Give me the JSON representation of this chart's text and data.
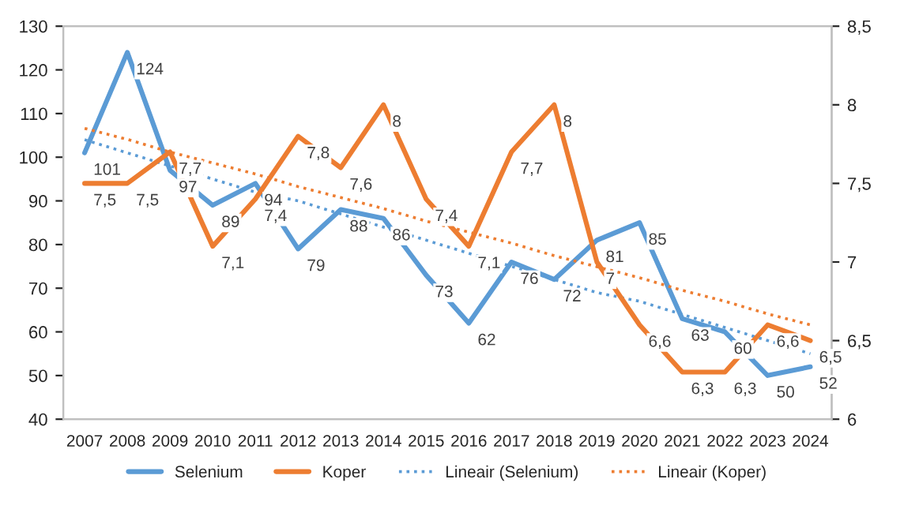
{
  "chart_data": {
    "type": "line",
    "categories": [
      "2007",
      "2008",
      "2009",
      "2010",
      "2011",
      "2012",
      "2013",
      "2014",
      "2015",
      "2016",
      "2017",
      "2018",
      "2019",
      "2020",
      "2021",
      "2022",
      "2023",
      "2024"
    ],
    "series": [
      {
        "name": "Selenium",
        "color": "#5b9bd5",
        "values": [
          101,
          124,
          97,
          89,
          94,
          79,
          88,
          86,
          73,
          62,
          76,
          72,
          81,
          85,
          63,
          60,
          50,
          52
        ],
        "value_labels": [
          "101",
          "124",
          "97",
          "89",
          "94",
          "79",
          "88",
          "86",
          "73",
          "62",
          "76",
          "72",
          "81",
          "85",
          "63",
          "60",
          "50",
          "52"
        ]
      },
      {
        "name": "Koper",
        "color": "#ed7d31",
        "axis": "y2",
        "values": [
          7.5,
          7.5,
          7.7,
          7.1,
          7.4,
          7.8,
          7.6,
          8,
          7.4,
          7.1,
          7.7,
          8,
          7,
          6.6,
          6.3,
          6.3,
          6.6,
          6.5
        ],
        "value_labels": [
          "7,5",
          "7,5",
          "7,7",
          "7,1",
          "7,4",
          "7,8",
          "7,6",
          "8",
          "7,4",
          "7,1",
          "7,7",
          "8",
          "7",
          "6,6",
          "6,3",
          "6,3",
          "6,6",
          "6,5"
        ]
      },
      {
        "name": "Lineair (Selenium)",
        "type": "line",
        "line_style": "dotted",
        "color": "#5b9bd5",
        "values": [
          104,
          101,
          98,
          95,
          92,
          90,
          87,
          84,
          81,
          78,
          75,
          72,
          69,
          67,
          64,
          61,
          58,
          55
        ]
      },
      {
        "name": "Lineair (Koper)",
        "type": "line",
        "line_style": "dotted",
        "color": "#ed7d31",
        "axis": "y2",
        "values": [
          7.85,
          7.78,
          7.7,
          7.63,
          7.56,
          7.48,
          7.41,
          7.34,
          7.26,
          7.19,
          7.12,
          7.04,
          6.97,
          6.9,
          6.82,
          6.75,
          6.67,
          6.6
        ]
      }
    ],
    "ylim": [
      40,
      130
    ],
    "yticks": [
      40,
      50,
      60,
      70,
      80,
      90,
      100,
      110,
      120,
      130
    ],
    "y2lim": [
      6,
      8.5
    ],
    "y2ticks": [
      {
        "value": 6,
        "label": "6"
      },
      {
        "value": 6.5,
        "label": "6,5"
      },
      {
        "value": 7,
        "label": "7"
      },
      {
        "value": 7.5,
        "label": "7,5"
      },
      {
        "value": 8,
        "label": "8"
      },
      {
        "value": 8.5,
        "label": "8,5"
      }
    ],
    "grid": false,
    "legend": "bottom",
    "marker": "none",
    "line_style": "solid"
  }
}
